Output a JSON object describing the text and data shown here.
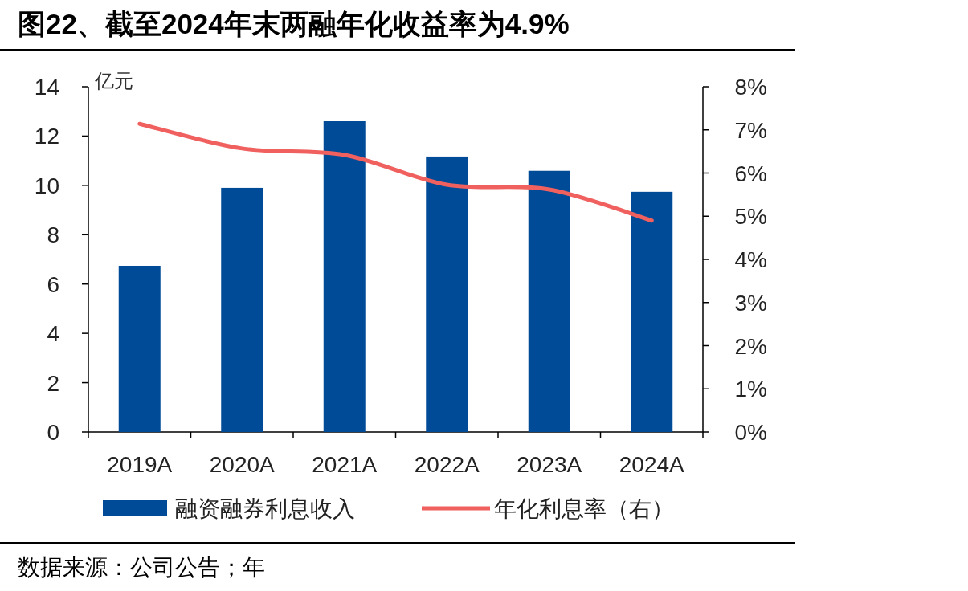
{
  "chart_data": {
    "type": "bar",
    "title": "图22、截至2024年末两融年化收益率为4.9%",
    "ylabel": "亿元",
    "categories": [
      "2019A",
      "2020A",
      "2021A",
      "2022A",
      "2023A",
      "2024A"
    ],
    "series": [
      {
        "name": "融资融券利息收入",
        "color": "#004b97",
        "values": [
          6.74,
          9.9,
          12.6,
          11.17,
          10.59,
          9.74
        ]
      },
      {
        "name": "年化利息率（右）",
        "type": "line",
        "axis": "y2",
        "color": "#f0605e",
        "values": [
          7.14,
          6.57,
          6.42,
          5.73,
          5.62,
          4.9
        ]
      }
    ],
    "ylim": [
      0,
      14
    ],
    "yticks": [
      0,
      2,
      4,
      6,
      8,
      10,
      12,
      14
    ],
    "y2lim": [
      0,
      8
    ],
    "y2ticks": [
      {
        "value": 0,
        "label": "0%"
      },
      {
        "value": 1,
        "label": "1%"
      },
      {
        "value": 2,
        "label": "2%"
      },
      {
        "value": 3,
        "label": "3%"
      },
      {
        "value": 4,
        "label": "4%"
      },
      {
        "value": 5,
        "label": "5%"
      },
      {
        "value": 6,
        "label": "6%"
      },
      {
        "value": 7,
        "label": "7%"
      },
      {
        "value": 8,
        "label": "8%"
      }
    ],
    "legend": "bottom",
    "annotations": [
      "数据来源：公司公告；年"
    ]
  }
}
